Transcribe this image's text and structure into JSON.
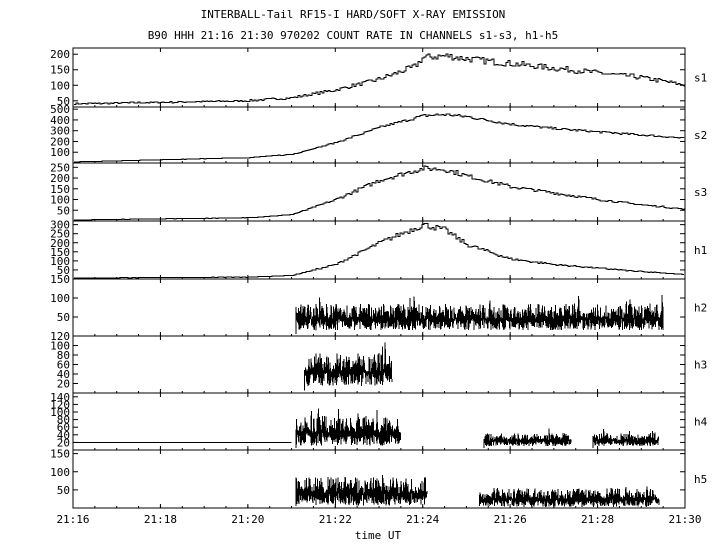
{
  "chart_data": {
    "type": "line",
    "title": "INTERBALL-Tail RF15-I HARD/SOFT X-RAY EMISSION",
    "subtitle": "B90 HHH 21:16 21:30 970202  COUNT RATE IN CHANNELS s1-s3, h1-h5",
    "xlabel": "time UT",
    "x_ticks": [
      "21:16",
      "21:18",
      "21:20",
      "21:22",
      "21:24",
      "21:26",
      "21:28",
      "21:30"
    ],
    "xlim": [
      "21:16",
      "21:30"
    ],
    "grid": false,
    "panels": [
      {
        "name": "s1",
        "ylim": [
          30,
          220
        ],
        "yticks": [
          50,
          100,
          150,
          200
        ],
        "x": [
          "21:16",
          "21:18",
          "21:20",
          "21:21",
          "21:22",
          "21:23",
          "21:23.8",
          "21:24",
          "21:24.5",
          "21:25",
          "21:26",
          "21:27",
          "21:28",
          "21:29",
          "21:30"
        ],
        "values": [
          40,
          45,
          50,
          60,
          85,
          120,
          160,
          190,
          195,
          185,
          170,
          155,
          140,
          125,
          100
        ],
        "noise": 0.06
      },
      {
        "name": "s2",
        "ylim": [
          0,
          520
        ],
        "yticks": [
          100,
          200,
          300,
          400,
          500
        ],
        "x": [
          "21:16",
          "21:18",
          "21:20",
          "21:21",
          "21:22",
          "21:23",
          "21:24",
          "21:24.5",
          "21:25",
          "21:26",
          "21:27",
          "21:28",
          "21:29",
          "21:30"
        ],
        "values": [
          10,
          30,
          50,
          80,
          190,
          330,
          440,
          450,
          430,
          360,
          320,
          290,
          260,
          230
        ],
        "noise": 0.03
      },
      {
        "name": "s3",
        "ylim": [
          0,
          270
        ],
        "yticks": [
          50,
          100,
          150,
          200,
          250
        ],
        "x": [
          "21:16",
          "21:18",
          "21:20",
          "21:21",
          "21:22",
          "21:23",
          "21:24",
          "21:24.5",
          "21:25",
          "21:26",
          "21:27",
          "21:28",
          "21:29",
          "21:30"
        ],
        "values": [
          5,
          10,
          15,
          30,
          100,
          190,
          245,
          240,
          210,
          160,
          130,
          100,
          75,
          55
        ],
        "noise": 0.05
      },
      {
        "name": "h1",
        "ylim": [
          0,
          320
        ],
        "yticks": [
          50,
          100,
          150,
          200,
          250,
          300
        ],
        "x": [
          "21:16",
          "21:18",
          "21:20",
          "21:21",
          "21:22",
          "21:23",
          "21:24",
          "21:24.5",
          "21:25",
          "21:26",
          "21:27",
          "21:28",
          "21:29",
          "21:30"
        ],
        "values": [
          5,
          8,
          10,
          20,
          80,
          200,
          300,
          270,
          190,
          110,
          80,
          60,
          40,
          25
        ],
        "noise": 0.06
      },
      {
        "name": "h2",
        "ylim": [
          0,
          150
        ],
        "yticks": [
          50,
          100,
          150
        ],
        "segments": [
          {
            "x": [
              "21:21.1",
              "21:29.5"
            ],
            "level": 45,
            "spread": 40
          }
        ]
      },
      {
        "name": "h3",
        "ylim": [
          0,
          120
        ],
        "yticks": [
          20,
          40,
          60,
          80,
          100,
          120
        ],
        "segments": [
          {
            "x": [
              "21:21.3",
              "21:23.3"
            ],
            "level": 45,
            "spread": 40
          }
        ]
      },
      {
        "name": "h4",
        "ylim": [
          0,
          150
        ],
        "yticks": [
          20,
          40,
          60,
          80,
          100,
          120,
          140
        ],
        "baseline": {
          "x": [
            "21:16",
            "21:21"
          ],
          "level": 20
        },
        "segments": [
          {
            "x": [
              "21:21.1",
              "21:23.5"
            ],
            "level": 45,
            "spread": 45
          },
          {
            "x": [
              "21:25.4",
              "21:27.4"
            ],
            "level": 25,
            "spread": 20
          },
          {
            "x": [
              "21:27.9",
              "21:29.4"
            ],
            "level": 25,
            "spread": 20
          }
        ]
      },
      {
        "name": "h5",
        "ylim": [
          0,
          160
        ],
        "yticks": [
          50,
          100,
          150
        ],
        "segments": [
          {
            "x": [
              "21:21.1",
              "21:24.1"
            ],
            "level": 40,
            "spread": 45
          },
          {
            "x": [
              "21:25.3",
              "21:29.4"
            ],
            "level": 25,
            "spread": 30
          }
        ]
      }
    ]
  }
}
